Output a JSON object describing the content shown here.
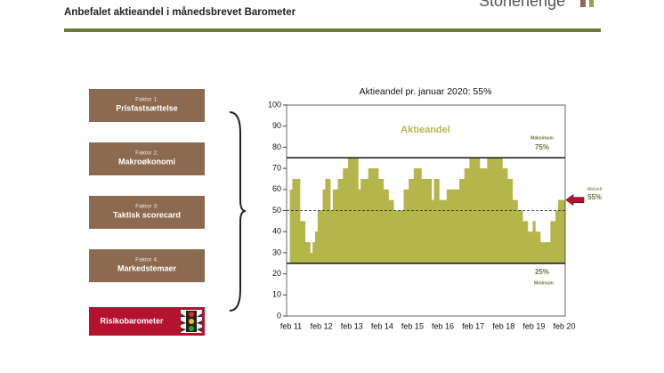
{
  "header": {
    "title": "Anbefalet aktieandel i månedsbrevet Barometer",
    "logo": "Stonehenge"
  },
  "factors": [
    {
      "label": "Faktor 1:",
      "name": "Prisfastsættelse"
    },
    {
      "label": "Faktor 2:",
      "name": "Makroøkonomi"
    },
    {
      "label": "Faktor 3:",
      "name": "Taktisk scorecard"
    },
    {
      "label": "Faktor 4:",
      "name": "Markedstemaer"
    }
  ],
  "risk_button": "Risikobarometer",
  "chart_data": {
    "type": "step-area",
    "title": "Aktieandel pr. januar 2020: 55%",
    "series_label": "Aktieandel",
    "color": "#b4b64c",
    "categories": [
      "feb 11",
      null,
      null,
      null,
      null,
      null,
      null,
      null,
      null,
      null,
      null,
      null,
      "feb 12",
      null,
      null,
      null,
      null,
      null,
      null,
      null,
      null,
      null,
      null,
      null,
      "feb 13",
      null,
      null,
      null,
      null,
      null,
      null,
      null,
      null,
      null,
      null,
      null,
      "feb 14",
      null,
      null,
      null,
      null,
      null,
      null,
      null,
      null,
      null,
      null,
      null,
      "feb 15",
      null,
      null,
      null,
      null,
      null,
      null,
      null,
      null,
      null,
      null,
      null,
      "feb 16",
      null,
      null,
      null,
      null,
      null,
      null,
      null,
      null,
      null,
      null,
      null,
      "feb 17",
      null,
      null,
      null,
      null,
      null,
      null,
      null,
      null,
      null,
      null,
      null,
      "feb 18",
      null,
      null,
      null,
      null,
      null,
      null,
      null,
      null,
      null,
      null,
      null,
      "feb 19",
      null,
      null,
      null,
      null,
      null,
      null,
      null,
      null,
      null,
      null,
      null,
      "feb 20"
    ],
    "values": [
      60,
      65,
      65,
      65,
      45,
      45,
      35,
      35,
      30,
      35,
      40,
      50,
      50,
      60,
      65,
      65,
      50,
      60,
      60,
      65,
      65,
      70,
      70,
      75,
      75,
      75,
      75,
      60,
      65,
      65,
      65,
      70,
      70,
      70,
      70,
      65,
      65,
      60,
      60,
      55,
      55,
      50,
      50,
      50,
      50,
      60,
      60,
      65,
      65,
      70,
      70,
      70,
      65,
      65,
      65,
      65,
      55,
      65,
      65,
      55,
      55,
      55,
      60,
      60,
      60,
      60,
      60,
      65,
      65,
      70,
      70,
      75,
      75,
      75,
      75,
      70,
      70,
      70,
      75,
      75,
      75,
      75,
      75,
      75,
      70,
      70,
      65,
      65,
      55,
      55,
      50,
      50,
      45,
      45,
      40,
      40,
      45,
      40,
      40,
      35,
      35,
      35,
      35,
      45,
      45,
      50,
      55,
      55,
      55
    ],
    "ylim": [
      0,
      100
    ],
    "yticks": [
      0,
      10,
      20,
      30,
      40,
      50,
      60,
      70,
      80,
      90,
      100
    ],
    "maximum": {
      "label": "Maksimum",
      "value": 75,
      "value_label": "75%"
    },
    "minimum": {
      "label": "Minimum",
      "value": 25,
      "value_label": "25%"
    },
    "neutral": {
      "value": 50,
      "style": "dashed"
    },
    "current": {
      "label": "Aktuelt",
      "value": 55,
      "value_label": "55%"
    }
  }
}
